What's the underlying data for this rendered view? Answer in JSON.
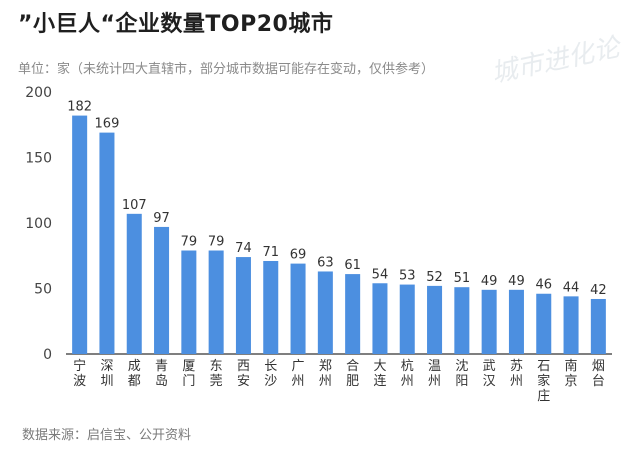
{
  "title": "”小巨人“企业数量TOP20城市",
  "subtitle": "单位：家（未统计四大直辖市，部分城市数据可能存在变动，仅供参考）",
  "source": "数据来源：启信宝、公开资料",
  "watermark": "城市进化论",
  "colors": {
    "bar": "#4c8fe0",
    "axis": "#333333"
  },
  "chart_data": {
    "type": "bar",
    "title": "”小巨人“企业数量TOP20城市",
    "categories": [
      "宁波",
      "深圳",
      "成都",
      "青岛",
      "厦门",
      "东莞",
      "西安",
      "长沙",
      "广州",
      "郑州",
      "合肥",
      "大连",
      "杭州",
      "温州",
      "沈阳",
      "武汉",
      "苏州",
      "石家庄",
      "南京",
      "烟台"
    ],
    "values": [
      182,
      169,
      107,
      97,
      79,
      79,
      74,
      71,
      69,
      63,
      61,
      54,
      53,
      52,
      51,
      49,
      49,
      46,
      44,
      42
    ],
    "ylim": [
      0,
      200
    ],
    "yticks": [
      0,
      50,
      100,
      150,
      200
    ],
    "xlabel": "",
    "ylabel": "单位：家",
    "grid": false,
    "legend": "none"
  }
}
